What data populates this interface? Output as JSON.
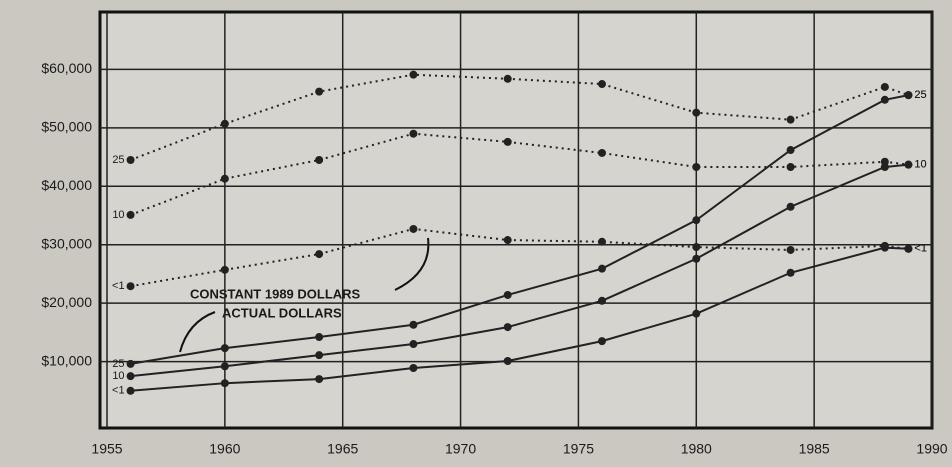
{
  "chart_data": {
    "type": "line",
    "annotations": [
      "CONSTANT 1989 DOLLARS",
      "ACTUAL DOLLARS"
    ],
    "x": [
      1956,
      1960,
      1964,
      1968,
      1972,
      1976,
      1980,
      1984,
      1988,
      1989
    ],
    "series": [
      {
        "name": "25",
        "color": "#222222",
        "style": "dotted",
        "values": [
          44500,
          50700,
          56200,
          59100,
          58400,
          57500,
          52600,
          51400,
          57000,
          55600
        ]
      },
      {
        "name": "10",
        "color": "#222222",
        "style": "dotted",
        "values": [
          35100,
          41300,
          44500,
          49000,
          47600,
          45700,
          43300,
          43300,
          44200,
          43700
        ]
      },
      {
        "name": "<1",
        "color": "#222222",
        "style": "dotted",
        "values": [
          22900,
          25700,
          28400,
          32700,
          30800,
          30500,
          29600,
          29100,
          29800,
          29300
        ]
      },
      {
        "name": "25",
        "color": "#222222",
        "style": "solid",
        "values": [
          9600,
          12300,
          14200,
          16300,
          21400,
          25900,
          34200,
          46200,
          54800,
          55600
        ]
      },
      {
        "name": "10",
        "color": "#222222",
        "style": "solid",
        "values": [
          7500,
          9200,
          11100,
          13000,
          15900,
          20400,
          27600,
          36500,
          43300,
          43700
        ]
      },
      {
        "name": "<1",
        "color": "#222222",
        "style": "solid",
        "values": [
          5000,
          6300,
          7000,
          8900,
          10100,
          13500,
          18200,
          25200,
          29500,
          29300
        ]
      }
    ],
    "xlim": [
      1955,
      1990
    ],
    "xticks": [
      1955,
      1960,
      1965,
      1970,
      1975,
      1980,
      1985,
      1990
    ],
    "ylim": [
      0,
      70000
    ],
    "yticks": [
      {
        "value": 10000,
        "label": "$10,000"
      },
      {
        "value": 20000,
        "label": "$20,000"
      },
      {
        "value": 30000,
        "label": "$30,000"
      },
      {
        "value": 40000,
        "label": "$40,000"
      },
      {
        "value": 50000,
        "label": "$50,000"
      },
      {
        "value": 60000,
        "label": "$60,000"
      }
    ],
    "grid": true
  }
}
